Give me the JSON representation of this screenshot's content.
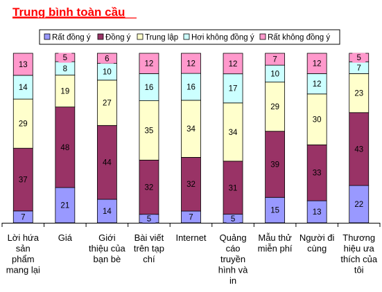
{
  "chart_data": {
    "type": "bar",
    "stacked": true,
    "normalized": true,
    "title": "Trung bình toàn cầu",
    "legend_position": "top",
    "grid": false,
    "categories": [
      "Lời hứa sản phẩm mang lại",
      "Giá",
      "Giới thiệu của bạn bè",
      "Bài viết trên tạp chí",
      "Internet",
      "Quảng cáo truyền hình và in",
      "Mẫu thử miễn phí",
      "Người đi cùng",
      "Thương hiệu ưa thích của tôi"
    ],
    "category_lines": [
      [
        "Lời hứa",
        "sản",
        "phẩm",
        "mang lại"
      ],
      [
        "Giá"
      ],
      [
        "Giới",
        "thiệu của",
        "bạn bè"
      ],
      [
        "Bài viết",
        "trên tạp",
        "chí"
      ],
      [
        "Internet"
      ],
      [
        "Quảng",
        "cáo",
        "truyền",
        "hình và",
        "in"
      ],
      [
        "Mẫu thử",
        "miễn phí"
      ],
      [
        "Người đi",
        "cùng"
      ],
      [
        "Thương",
        "hiệu ưa",
        "thích của",
        "tôi"
      ]
    ],
    "series": [
      {
        "name": "Rất đồng ý",
        "color": "#9999ff",
        "values": [
          7,
          21,
          14,
          5,
          7,
          5,
          15,
          13,
          22
        ]
      },
      {
        "name": "Đồng ý",
        "color": "#993366",
        "values": [
          37,
          48,
          44,
          32,
          32,
          31,
          39,
          33,
          43
        ]
      },
      {
        "name": "Trung lập",
        "color": "#ffffcc",
        "values": [
          29,
          19,
          27,
          35,
          34,
          34,
          29,
          30,
          23
        ]
      },
      {
        "name": "Hơi không đồng ý",
        "color": "#ccffff",
        "values": [
          14,
          8,
          10,
          16,
          16,
          17,
          10,
          12,
          7
        ]
      },
      {
        "name": "Rất không đồng ý",
        "color": "#ff99cc",
        "values": [
          13,
          5,
          6,
          12,
          12,
          12,
          7,
          12,
          5
        ]
      }
    ]
  }
}
